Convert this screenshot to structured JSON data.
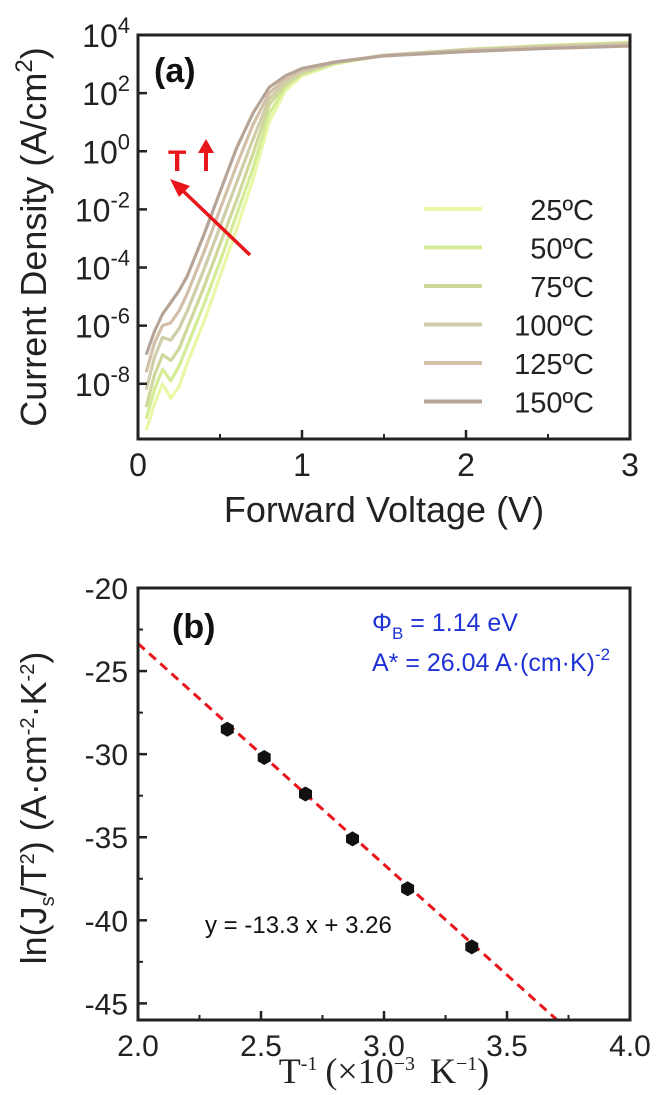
{
  "chart_data": [
    {
      "type": "line",
      "panel_label": "(a)",
      "xlabel": "Forward Voltage (V)",
      "ylabel": "Current Density (A/cm",
      "ylabel_sup": "2",
      "ylabel_end": ")",
      "xlim": [
        0,
        3
      ],
      "ylim_log10": [
        -9.9,
        4
      ],
      "yscale": "log",
      "x_ticks": [
        "0",
        "1",
        "2",
        "3"
      ],
      "y_ticks": [
        {
          "base": "10",
          "exp": "4",
          "log": 4
        },
        {
          "base": "10",
          "exp": "2",
          "log": 2
        },
        {
          "base": "10",
          "exp": "0",
          "log": 0
        },
        {
          "base": "10",
          "exp": "-2",
          "log": -2
        },
        {
          "base": "10",
          "exp": "-4",
          "log": -4
        },
        {
          "base": "10",
          "exp": "-6",
          "log": -6
        },
        {
          "base": "10",
          "exp": "-8",
          "log": -8
        }
      ],
      "annotation_text": "T",
      "annotation_color": "#e8161b",
      "legend_position": "center-right",
      "series": [
        {
          "name": "25ºC",
          "color": "#e9f7a6",
          "x": [
            0.05,
            0.1,
            0.15,
            0.2,
            0.25,
            0.3,
            0.4,
            0.5,
            0.6,
            0.7,
            0.8,
            0.9,
            1.0,
            1.2,
            1.5,
            2.0,
            2.5,
            3.0
          ],
          "log_y": [
            -9.6,
            -8.7,
            -8.0,
            -8.5,
            -8.1,
            -7.3,
            -5.9,
            -4.3,
            -2.7,
            -1.0,
            1.0,
            2.1,
            2.6,
            3.0,
            3.3,
            3.5,
            3.65,
            3.75
          ]
        },
        {
          "name": "50ºC",
          "color": "#d5ec96",
          "x": [
            0.05,
            0.1,
            0.15,
            0.2,
            0.25,
            0.3,
            0.4,
            0.5,
            0.6,
            0.7,
            0.8,
            0.9,
            1.0,
            1.2,
            1.5,
            2.0,
            2.5,
            3.0
          ],
          "log_y": [
            -9.2,
            -8.2,
            -7.5,
            -7.9,
            -7.4,
            -6.7,
            -5.3,
            -3.8,
            -2.2,
            -0.6,
            1.3,
            2.2,
            2.65,
            3.02,
            3.3,
            3.5,
            3.64,
            3.74
          ]
        },
        {
          "name": "75ºC",
          "color": "#cfd79a",
          "x": [
            0.05,
            0.1,
            0.15,
            0.2,
            0.25,
            0.3,
            0.4,
            0.5,
            0.6,
            0.7,
            0.8,
            0.9,
            1.0,
            1.2,
            1.5,
            2.0,
            2.5,
            3.0
          ],
          "log_y": [
            -8.8,
            -7.7,
            -7.0,
            -7.2,
            -6.8,
            -6.1,
            -4.7,
            -3.2,
            -1.7,
            -0.1,
            1.6,
            2.3,
            2.7,
            3.04,
            3.3,
            3.5,
            3.63,
            3.72
          ]
        },
        {
          "name": "100ºC",
          "color": "#cfcea8",
          "x": [
            0.05,
            0.1,
            0.15,
            0.2,
            0.25,
            0.3,
            0.4,
            0.5,
            0.6,
            0.7,
            0.8,
            0.9,
            1.0,
            1.2,
            1.5,
            2.0,
            2.5,
            3.0
          ],
          "log_y": [
            -8.2,
            -7.1,
            -6.4,
            -6.5,
            -6.1,
            -5.5,
            -4.1,
            -2.6,
            -1.1,
            0.4,
            1.8,
            2.4,
            2.75,
            3.05,
            3.3,
            3.48,
            3.6,
            3.7
          ]
        },
        {
          "name": "125ºC",
          "color": "#d4c0a8",
          "x": [
            0.05,
            0.1,
            0.15,
            0.2,
            0.25,
            0.3,
            0.4,
            0.5,
            0.6,
            0.7,
            0.8,
            0.9,
            1.0,
            1.2,
            1.5,
            2.0,
            2.5,
            3.0
          ],
          "log_y": [
            -7.6,
            -6.6,
            -6.0,
            -5.9,
            -5.5,
            -4.9,
            -3.5,
            -2.0,
            -0.5,
            0.9,
            2.0,
            2.5,
            2.8,
            3.06,
            3.3,
            3.46,
            3.58,
            3.66
          ]
        },
        {
          "name": "150ºC",
          "color": "#b6a597",
          "x": [
            0.05,
            0.1,
            0.15,
            0.2,
            0.25,
            0.3,
            0.4,
            0.5,
            0.6,
            0.7,
            0.8,
            0.9,
            1.0,
            1.2,
            1.5,
            2.0,
            2.5,
            3.0
          ],
          "log_y": [
            -7.0,
            -6.2,
            -5.6,
            -5.2,
            -4.8,
            -4.3,
            -2.9,
            -1.4,
            0.1,
            1.3,
            2.2,
            2.6,
            2.85,
            3.07,
            3.28,
            3.43,
            3.54,
            3.62
          ]
        }
      ]
    },
    {
      "type": "scatter",
      "panel_label": "(b)",
      "xlabel": "T",
      "xlabel_sup": "-1",
      "xlabel_units": "(×10",
      "xlabel_units_sup": "−3",
      "xlabel_units_end": " K",
      "xlabel_units_sup2": "−1",
      "xlabel_units_close": ")",
      "ylabel_parts": [
        "ln(J",
        "s",
        "/T",
        "2",
        ") (A·cm",
        "-2",
        "·K",
        "-2",
        ")"
      ],
      "xlim": [
        2.0,
        4.0
      ],
      "ylim": [
        -46,
        -20
      ],
      "x_ticks": [
        {
          "label": "2.0",
          "value": 2.0
        },
        {
          "label": "2.5",
          "value": 2.5
        },
        {
          "label": "3.0",
          "value": 3.0
        },
        {
          "label": "3.5",
          "value": 3.5
        },
        {
          "label": "4.0",
          "value": 4.0
        }
      ],
      "y_ticks": [
        {
          "label": "-20",
          "value": -20
        },
        {
          "label": "-25",
          "value": -25
        },
        {
          "label": "-30",
          "value": -30
        },
        {
          "label": "-35",
          "value": -35
        },
        {
          "label": "-40",
          "value": -40
        },
        {
          "label": "-45",
          "value": -45
        }
      ],
      "points": {
        "x": [
          2.363,
          2.513,
          2.681,
          2.872,
          3.096,
          3.357
        ],
        "y": [
          -28.5,
          -30.2,
          -32.4,
          -35.1,
          -38.1,
          -41.6
        ]
      },
      "fit": {
        "slope": -13.3,
        "intercept": 3.26,
        "equation": "y = -13.3 x + 3.26",
        "line_color": "#e8161b"
      },
      "annotation_color": "#1f32d6",
      "annotations": {
        "phi_symbol": "Φ",
        "phi_sub": "B",
        "phi_value": " = 1.14 eV",
        "astar_text": "A* = 26.04 A·(cm·K)",
        "astar_sup": "-2"
      }
    }
  ]
}
